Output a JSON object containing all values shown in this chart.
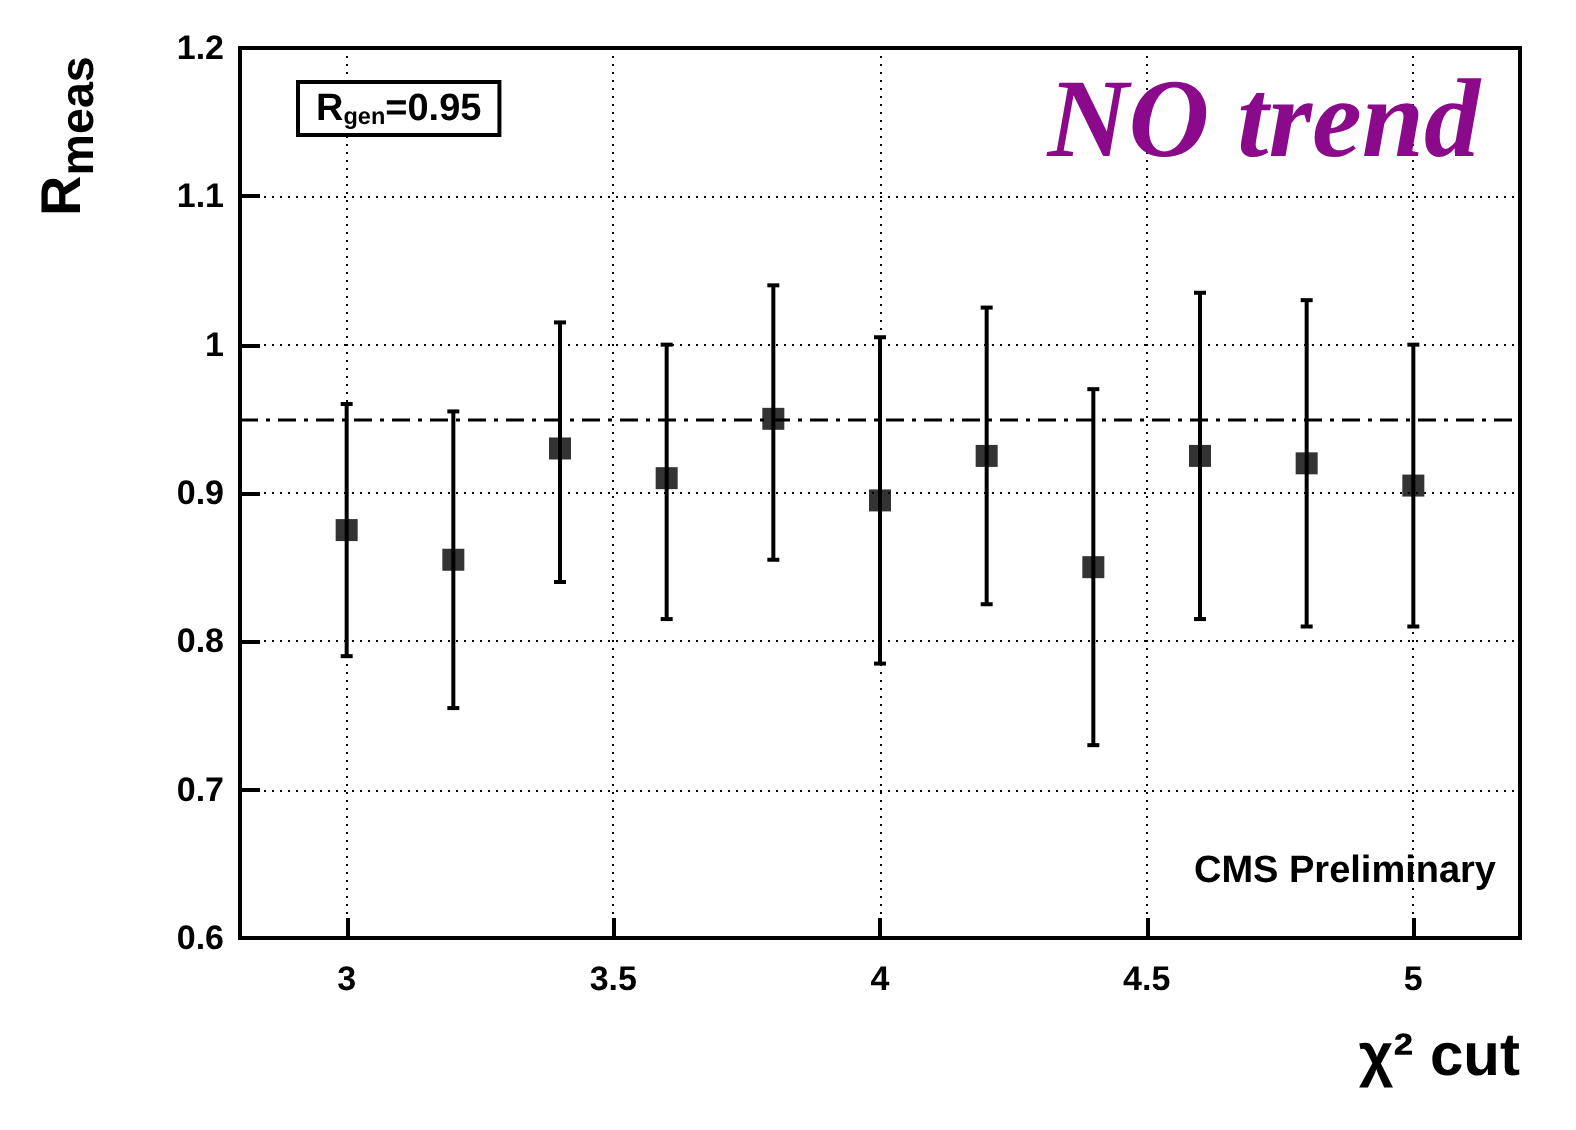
{
  "chart_data": {
    "type": "scatter",
    "xlabel": "χ² cut",
    "ylabel": "R$_{meas}$",
    "x": [
      3,
      3.2,
      3.4,
      3.6,
      3.8,
      4,
      4.2,
      4.4,
      4.6,
      4.8,
      5
    ],
    "values": [
      0.875,
      0.855,
      0.93,
      0.91,
      0.95,
      0.895,
      0.925,
      0.85,
      0.925,
      0.92,
      0.905
    ],
    "errors": [
      [
        0.79,
        0.96
      ],
      [
        0.755,
        0.955
      ],
      [
        0.84,
        1.015
      ],
      [
        0.815,
        1.0
      ],
      [
        0.855,
        1.04
      ],
      [
        0.785,
        1.005
      ],
      [
        0.825,
        1.025
      ],
      [
        0.73,
        0.97
      ],
      [
        0.815,
        1.035
      ],
      [
        0.81,
        1.03
      ],
      [
        0.81,
        1.0
      ]
    ],
    "color": "#000000",
    "marker": "square",
    "xlim": [
      2.8,
      5.2
    ],
    "xticks": [
      3,
      3.5,
      4,
      4.5,
      5
    ],
    "ylim": [
      0.6,
      1.2
    ],
    "yticks": [
      0.6,
      0.7,
      0.8,
      0.9,
      1,
      1.1,
      1.2
    ],
    "grid": true,
    "ref_lines": [
      {
        "axis": "y",
        "value": 0.95,
        "line_style": "dashdot",
        "color": "#000000"
      }
    ],
    "annotations": [
      "R$_{gen}$=0.95",
      "NO trend",
      "CMS Preliminary"
    ]
  }
}
